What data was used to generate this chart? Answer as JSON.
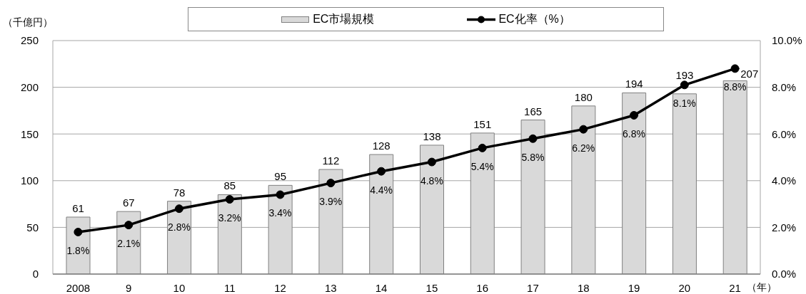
{
  "chart_data": {
    "type": "bar",
    "legend": "top",
    "grid": "y",
    "marker": "circle",
    "ylabel": "（千億円）",
    "xlabel": "（年）",
    "categories": [
      "2008",
      "9",
      "10",
      "11",
      "12",
      "13",
      "14",
      "15",
      "16",
      "17",
      "18",
      "19",
      "20",
      "21"
    ],
    "series": [
      {
        "name": "EC市場規模",
        "color": "#d9d9d9",
        "values": [
          61,
          67,
          78,
          85,
          95,
          112,
          128,
          138,
          151,
          165,
          180,
          194,
          193,
          207
        ],
        "value_labels": [
          "61",
          "67",
          "78",
          "85",
          "95",
          "112",
          "128",
          "138",
          "151",
          "165",
          "180",
          "194",
          "193",
          "207"
        ]
      },
      {
        "name": "EC化率（%）",
        "type": "line",
        "axis": "y2",
        "color": "#000000",
        "values": [
          1.8,
          2.1,
          2.8,
          3.2,
          3.4,
          3.9,
          4.4,
          4.8,
          5.4,
          5.8,
          6.2,
          6.8,
          8.1,
          8.8
        ],
        "value_labels": [
          "1.8%",
          "2.1%",
          "2.8%",
          "3.2%",
          "3.4%",
          "3.9%",
          "4.4%",
          "4.8%",
          "5.4%",
          "5.8%",
          "6.2%",
          "6.8%",
          "8.1%",
          "8.8%"
        ]
      }
    ],
    "ylim": [
      0,
      250
    ],
    "yticks": [
      0,
      50,
      100,
      150,
      200,
      250
    ],
    "y2lim": [
      0,
      10
    ],
    "y2ticks": [
      {
        "value": 0,
        "label": "0.0%"
      },
      {
        "value": 2,
        "label": "2.0%"
      },
      {
        "value": 4,
        "label": "4.0%"
      },
      {
        "value": 6,
        "label": "6.0%"
      },
      {
        "value": 8,
        "label": "8.0%"
      },
      {
        "value": 10,
        "label": "10.0%"
      }
    ]
  }
}
